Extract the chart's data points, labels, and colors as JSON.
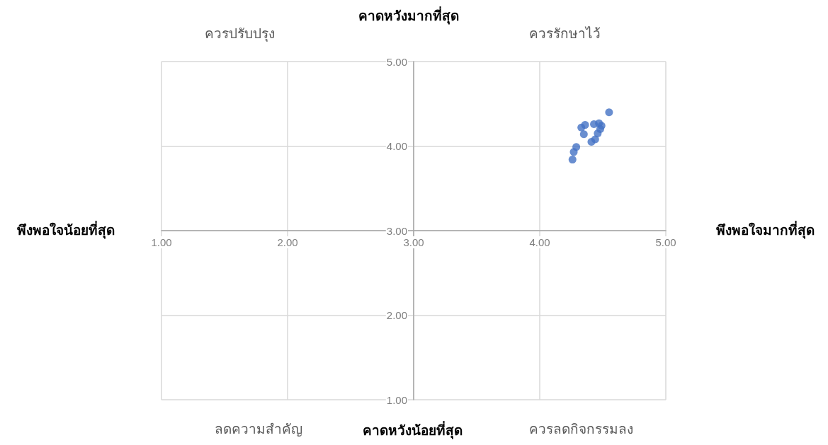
{
  "chart_data": {
    "type": "scatter",
    "color": "#4472c4",
    "marker": "circle",
    "grid": true,
    "x": [
      4.55,
      4.33,
      4.36,
      4.35,
      4.43,
      4.47,
      4.49,
      4.48,
      4.46,
      4.41,
      4.44,
      4.29,
      4.27,
      4.26
    ],
    "values": [
      4.4,
      4.22,
      4.25,
      4.14,
      4.26,
      4.27,
      4.24,
      4.2,
      4.15,
      4.05,
      4.08,
      3.99,
      3.93,
      3.84
    ],
    "xlim": [
      1,
      5
    ],
    "xticks": [
      {
        "value": 1,
        "label": "1.00"
      },
      {
        "value": 2,
        "label": "2.00"
      },
      {
        "value": 3,
        "label": "3.00"
      },
      {
        "value": 4,
        "label": "4.00"
      },
      {
        "value": 5,
        "label": "5.00"
      }
    ],
    "ylim": [
      1,
      5
    ],
    "yticks": [
      {
        "value": 1,
        "label": "1.00"
      },
      {
        "value": 2,
        "label": "2.00"
      },
      {
        "value": 3,
        "label": "3.00"
      },
      {
        "value": 4,
        "label": "4.00"
      },
      {
        "value": 5,
        "label": "5.00"
      }
    ],
    "annotations": [
      "ควรปรับปรุง",
      "ควรรักษาไว้",
      "ลดความสำคัญ",
      "ควรลดกิจกรรมลง",
      "คาดหวังมากที่สุด",
      "คาดหวังน้อยที่สุด",
      "พึงพอใจน้อยที่สุด",
      "พึงพอใจมากที่สุด"
    ]
  }
}
